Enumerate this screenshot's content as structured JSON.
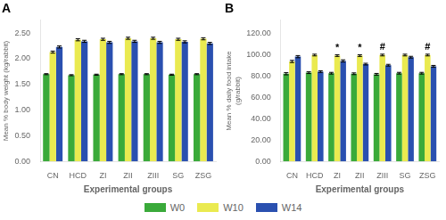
{
  "chart_data": [
    {
      "type": "bar",
      "title": "A",
      "xlabel": "Experimental groups",
      "ylabel": "Mean % body weight (kg/rabbit)",
      "categories": [
        "CN",
        "HCD",
        "ZI",
        "ZII",
        "ZIII",
        "SG",
        "ZSG"
      ],
      "series": [
        {
          "name": "W0",
          "color": "#3aaa3a",
          "values": [
            1.7,
            1.68,
            1.69,
            1.7,
            1.7,
            1.69,
            1.7
          ],
          "errors": [
            0.01,
            0.01,
            0.01,
            0.01,
            0.01,
            0.01,
            0.01
          ]
        },
        {
          "name": "W10",
          "color": "#eaea50",
          "values": [
            2.13,
            2.37,
            2.38,
            2.4,
            2.4,
            2.38,
            2.39
          ],
          "errors": [
            0.02,
            0.02,
            0.02,
            0.02,
            0.02,
            0.02,
            0.02
          ]
        },
        {
          "name": "W14",
          "color": "#2a50b0",
          "values": [
            2.23,
            2.34,
            2.32,
            2.34,
            2.32,
            2.33,
            2.3
          ],
          "errors": [
            0.02,
            0.02,
            0.02,
            0.02,
            0.02,
            0.02,
            0.02
          ]
        }
      ],
      "ylim": [
        0,
        2.75
      ],
      "yticks": [
        {
          "value": 0,
          "label": "0.00"
        },
        {
          "value": 0.5,
          "label": "0.50"
        },
        {
          "value": 1,
          "label": "1.00"
        },
        {
          "value": 1.5,
          "label": "1.50"
        },
        {
          "value": 2,
          "label": "2.00"
        },
        {
          "value": 2.5,
          "label": "2.50"
        }
      ],
      "grid": false,
      "legend": "bottom",
      "annotations": []
    },
    {
      "type": "bar",
      "title": "B",
      "xlabel": "Experimental groups",
      "ylabel": "Mean % daily food intake\n(g/rabbit)",
      "categories": [
        "CN",
        "HCD",
        "ZI",
        "ZII",
        "ZIII",
        "SG",
        "ZSG"
      ],
      "series": [
        {
          "name": "W0",
          "color": "#3aaa3a",
          "values": [
            82.0,
            83.0,
            82.5,
            82.0,
            81.5,
            82.5,
            82.5
          ],
          "errors": [
            1.0,
            0.8,
            0.8,
            0.8,
            0.8,
            0.8,
            0.8
          ]
        },
        {
          "name": "W10",
          "color": "#eaea50",
          "values": [
            93.5,
            99.5,
            99.0,
            99.0,
            99.5,
            99.5,
            99.5
          ],
          "errors": [
            1.0,
            0.8,
            0.8,
            0.8,
            0.8,
            0.8,
            0.8
          ]
        },
        {
          "name": "W14",
          "color": "#2a50b0",
          "values": [
            98.0,
            84.0,
            94.0,
            91.0,
            90.0,
            97.5,
            89.0
          ],
          "errors": [
            1.0,
            0.8,
            1.0,
            0.8,
            0.8,
            0.8,
            0.8
          ]
        }
      ],
      "ylim": [
        0,
        132
      ],
      "yticks": [
        {
          "value": 0,
          "label": "0.00"
        },
        {
          "value": 20,
          "label": "20.00"
        },
        {
          "value": 40,
          "label": "40.00"
        },
        {
          "value": 60,
          "label": "60.00"
        },
        {
          "value": 80,
          "label": "80.00"
        },
        {
          "value": 100,
          "label": "100.00"
        },
        {
          "value": 120,
          "label": "120.00"
        }
      ],
      "grid": false,
      "legend": "bottom",
      "annotations": [
        {
          "group": 2,
          "series": "W10",
          "text": "*"
        },
        {
          "group": 3,
          "series": "W10",
          "text": "*"
        },
        {
          "group": 4,
          "series": "W10",
          "text": "#"
        },
        {
          "group": 6,
          "series": "W10",
          "text": "#"
        }
      ]
    }
  ]
}
